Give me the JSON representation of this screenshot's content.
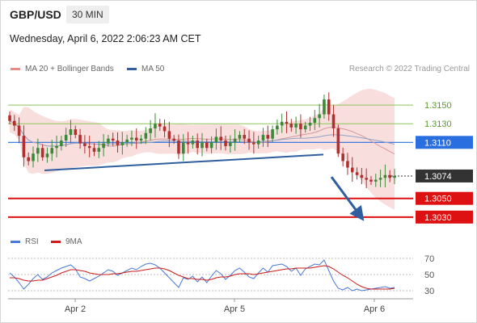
{
  "header": {
    "symbol": "GBP/USD",
    "timeframe": "30 MIN",
    "datetime": "Wednesday, April 6, 2022 2:06:23 AM CET"
  },
  "legend": {
    "ma20_label": "MA 20 + Bollinger Bands",
    "ma50_label": "MA 50",
    "credit": "Research © 2022 Trading Central",
    "rsi_label": "RSI",
    "ma9_label": "9MA"
  },
  "colors": {
    "bull": "#3a8a3a",
    "bear": "#b03030",
    "ma20": "#e88a8a",
    "ma50": "#2f5f9e",
    "resistance": "#8dc45a",
    "support": "#dd1111",
    "pivot": "#2a6fe0",
    "last": "#333333",
    "rsi": "#4a78d6",
    "ma9": "#cc1b1b"
  },
  "chart_data": [
    {
      "type": "candlestick",
      "x_axis_labels": [
        "Apr 2",
        "Apr 5",
        "Apr 6"
      ],
      "ylim": [
        1.3016,
        1.3176
      ],
      "price_levels": [
        {
          "value": 1.315,
          "label": "1.3150",
          "kind": "resistance"
        },
        {
          "value": 1.313,
          "label": "1.3130",
          "kind": "resistance"
        },
        {
          "value": 1.311,
          "label": "1.3110",
          "kind": "pivot"
        },
        {
          "value": 1.3074,
          "label": "1.3074",
          "kind": "last"
        },
        {
          "value": 1.305,
          "label": "1.3050",
          "kind": "support"
        },
        {
          "value": 1.303,
          "label": "1.3030",
          "kind": "support"
        }
      ],
      "trendlines": [
        {
          "name": "support-trendline",
          "points": [
            [
              0.09,
              1.308
            ],
            [
              0.62,
              1.3093
            ]
          ]
        },
        {
          "name": "broken-trendline",
          "points": [
            [
              0.62,
              1.3093
            ],
            [
              0.78,
              1.3097
            ]
          ]
        }
      ],
      "projection": {
        "from": [
          0.8,
          1.3073
        ],
        "to": [
          0.87,
          1.3032
        ]
      },
      "close": [
        1.3133,
        1.3128,
        1.3117,
        1.3094,
        1.309,
        1.3098,
        1.3104,
        1.3094,
        1.3098,
        1.3104,
        1.3106,
        1.3112,
        1.3118,
        1.3124,
        1.3118,
        1.3109,
        1.3106,
        1.3104,
        1.31,
        1.3104,
        1.3109,
        1.3114,
        1.3112,
        1.3107,
        1.311,
        1.3113,
        1.3115,
        1.3112,
        1.3114,
        1.312,
        1.3125,
        1.313,
        1.3127,
        1.3122,
        1.3114,
        1.3112,
        1.3098,
        1.311,
        1.3108,
        1.3112,
        1.3104,
        1.311,
        1.3104,
        1.311,
        1.3116,
        1.3112,
        1.3106,
        1.311,
        1.3114,
        1.3118,
        1.3114,
        1.311,
        1.3108,
        1.3112,
        1.3118,
        1.3114,
        1.3124,
        1.3128,
        1.3132,
        1.313,
        1.3126,
        1.313,
        1.3124,
        1.3128,
        1.3131,
        1.3136,
        1.314,
        1.3156,
        1.314,
        1.3125,
        1.3098,
        1.309,
        1.3083,
        1.3078,
        1.3075,
        1.3072,
        1.307,
        1.3068,
        1.307,
        1.3072,
        1.3075,
        1.3072,
        1.3074
      ],
      "rsi": {
        "ticks": [
          70,
          50,
          30
        ],
        "ylim": [
          24,
          78
        ],
        "rsi_values": [
          52,
          47,
          40,
          32,
          38,
          45,
          50,
          44,
          47,
          52,
          55,
          58,
          60,
          62,
          57,
          47,
          45,
          42,
          45,
          48,
          52,
          56,
          54,
          49,
          52,
          55,
          58,
          56,
          60,
          63,
          64,
          62,
          58,
          52,
          46,
          40,
          34,
          46,
          44,
          48,
          41,
          47,
          40,
          48,
          55,
          51,
          44,
          49,
          55,
          58,
          53,
          47,
          45,
          52,
          58,
          53,
          61,
          62,
          63,
          60,
          54,
          58,
          49,
          57,
          60,
          63,
          62,
          68,
          55,
          42,
          33,
          31,
          34,
          30,
          32,
          30,
          31,
          32,
          33,
          34,
          35,
          33,
          34
        ],
        "ma9_values": [
          46,
          46,
          45,
          43,
          42,
          42,
          43,
          43,
          45,
          47,
          49,
          52,
          54,
          56,
          56,
          55,
          54,
          52,
          51,
          50,
          50,
          50,
          51,
          51,
          52,
          53,
          54,
          54,
          55,
          56,
          57,
          58,
          58,
          57,
          55,
          52,
          49,
          47,
          45,
          45,
          44,
          44,
          43,
          44,
          46,
          47,
          47,
          48,
          50,
          51,
          51,
          51,
          50,
          51,
          52,
          53,
          54,
          55,
          56,
          57,
          57,
          58,
          58,
          58,
          58,
          59,
          60,
          61,
          60,
          57,
          53,
          49,
          46,
          42,
          38,
          35,
          33,
          32,
          32,
          32,
          32,
          32,
          33
        ]
      }
    }
  ]
}
